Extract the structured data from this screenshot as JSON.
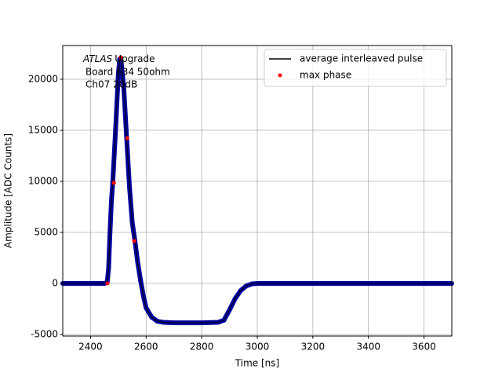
{
  "chart_data": {
    "type": "line",
    "annotation": {
      "experiment": "ATLAS",
      "lines": [
        "Upgrade",
        "Board 634 50ohm",
        "Ch07 20dB"
      ]
    },
    "x_label": "Time [ns]",
    "y_label": "Amplitude [ADC Counts]",
    "xlim": [
      2300,
      3700
    ],
    "ylim": [
      -5150,
      23300
    ],
    "xticks": [
      2400,
      2600,
      2800,
      3000,
      3200,
      3400,
      3600
    ],
    "yticks": [
      -5000,
      0,
      5000,
      10000,
      15000,
      20000
    ],
    "grid": true,
    "legend": "upper right",
    "series": [
      {
        "name": "average interleaved pulse",
        "style": "line",
        "color": "#000000",
        "marker_color": "#0000a0",
        "x": [
          2300,
          2400,
          2450,
          2460,
          2465,
          2470,
          2475,
          2480,
          2490,
          2500,
          2505,
          2510,
          2520,
          2530,
          2540,
          2550,
          2560,
          2570,
          2580,
          2590,
          2600,
          2620,
          2640,
          2660,
          2700,
          2800,
          2860,
          2880,
          2900,
          2920,
          2940,
          2960,
          2980,
          3000,
          3100,
          3300,
          3500,
          3700
        ],
        "values": [
          0,
          0,
          0,
          100,
          1500,
          5000,
          8000,
          9900,
          15000,
          20500,
          22000,
          21800,
          19000,
          14200,
          9500,
          6000,
          4100,
          2000,
          300,
          -1200,
          -2400,
          -3300,
          -3700,
          -3800,
          -3850,
          -3850,
          -3800,
          -3600,
          -2600,
          -1500,
          -700,
          -250,
          -50,
          0,
          0,
          0,
          0,
          0
        ]
      },
      {
        "name": "max phase",
        "style": "markers",
        "color": "#ff0000",
        "x": [
          2461,
          2484,
          2509,
          2532,
          2557
        ],
        "values": [
          0,
          9850,
          22150,
          14230,
          4150
        ]
      }
    ]
  }
}
